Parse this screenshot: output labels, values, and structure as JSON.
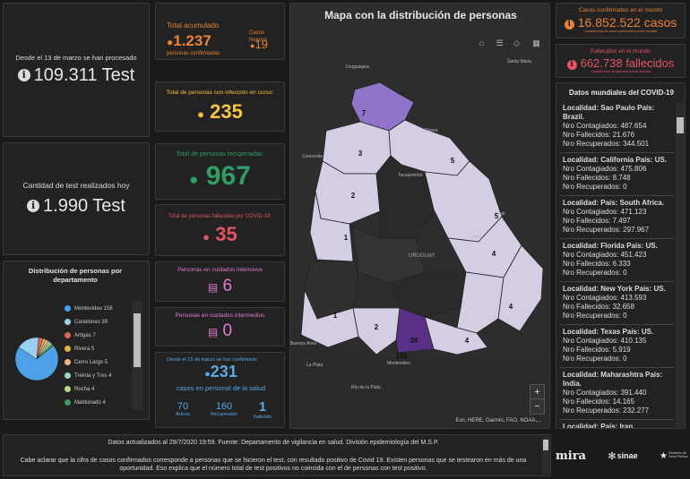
{
  "left": {
    "processed": {
      "caption": "Desde el 13 de marzo se han procesado",
      "value": "109.311 Test"
    },
    "today": {
      "caption": "Cantidad de test realizados hoy",
      "value": "1.990 Test"
    },
    "distribution": {
      "title": "Distribución de personas por departamento",
      "items": [
        {
          "label": "Montevideo 158",
          "color": "#4ea1e8"
        },
        {
          "label": "Canelones 39",
          "color": "#9ad0ef"
        },
        {
          "label": "Artigas 7",
          "color": "#e0645c"
        },
        {
          "label": "Rivera 5",
          "color": "#e0b43c"
        },
        {
          "label": "Cerro Largo 5",
          "color": "#f0b58a"
        },
        {
          "label": "Treinta y Tres 4",
          "color": "#9fd6c0"
        },
        {
          "label": "Rocha 4",
          "color": "#b9d985"
        },
        {
          "label": "Maldonado 4",
          "color": "#3a9a57"
        }
      ]
    }
  },
  "mid": {
    "acum": {
      "title": "Total acumulado",
      "value": "1.237",
      "sub": "personas confirmadas",
      "new_title": "Casos Nuevos",
      "new_value": "19"
    },
    "active": {
      "title": "Total de personas con infección en curso:",
      "value": "235"
    },
    "recovered": {
      "title": "Total de personas recuperadas:",
      "value": "967"
    },
    "deaths": {
      "title": "Total de personas fallecidas por COVID-19:",
      "value": "35"
    },
    "icu": {
      "title": "Personas en cuidados intensivos",
      "value": "6"
    },
    "intermediate": {
      "title": "Personas en cuidados intermedios",
      "value": "0"
    },
    "health": {
      "caption": "Desde el 13 de marzo se han confirmado",
      "value": "231",
      "sub": "casos en personal de la salud",
      "stats": [
        {
          "value": "70",
          "label": "Activos"
        },
        {
          "value": "160",
          "label": "Recuperados"
        },
        {
          "value": "1",
          "label": "Fallecido"
        }
      ]
    }
  },
  "map": {
    "title": "Mapa con la distribución de personas",
    "attribution": "Esri, HERE, Garmin, FAO, NOAA,...",
    "places": [
      "Uruguaiana",
      "Santa Maria",
      "Concordia",
      "Tacuarembó",
      "Rivera",
      "URUGUAY",
      "Buenos Aires",
      "La Plata",
      "Montevideo",
      "Río de la Plata",
      "Bagé",
      "Melo"
    ],
    "counts": [
      "7",
      "3",
      "5",
      "2",
      "5",
      "1",
      "4",
      "1",
      "2",
      "39",
      "158",
      "4",
      "4"
    ],
    "zoom_in": "+",
    "zoom_out": "−"
  },
  "right": {
    "world_cases": {
      "title": "Casos confirmados en el mundo",
      "value": "16.852.522 casos",
      "sub": "Cantidad total de casos confirmados a nivel mundial"
    },
    "world_deaths": {
      "title": "Fallecidos en el mundo",
      "value": "662.738 fallecidos",
      "sub": "Cantidad total de fallecidos a nivel mundial"
    },
    "world_list": {
      "title": "Datos mundiales del COVID-19",
      "items": [
        {
          "loc": "Localidad: Sao Paulo País: Brazil.",
          "c": "Nro Contagiados: 487.654",
          "f": "Nro Fallecidos: 21.676",
          "r": "Nro Recuperados: 344.501"
        },
        {
          "loc": "Localidad: California País: US.",
          "c": "Nro Contagiados: 475.806",
          "f": "Nro Fallecidos: 8.748",
          "r": "Nro Recuperados: 0"
        },
        {
          "loc": "Localidad:  País: South Africa.",
          "c": "Nro Contagiados: 471.123",
          "f": "Nro Fallecidos: 7.497",
          "r": "Nro Recuperados: 297.967"
        },
        {
          "loc": "Localidad: Florida País: US.",
          "c": "Nro Contagiados: 451.423",
          "f": "Nro Fallecidos: 6.333",
          "r": "Nro Recuperados: 0"
        },
        {
          "loc": "Localidad: New York País: US.",
          "c": "Nro Contagiados: 413.593",
          "f": "Nro Fallecidos: 32.658",
          "r": "Nro Recuperados: 0"
        },
        {
          "loc": "Localidad: Texas País: US.",
          "c": "Nro Contagiados: 410.135",
          "f": "Nro Fallecidos: 5.919",
          "r": "Nro Recuperados: 0"
        },
        {
          "loc": "Localidad: Maharashtra País: India.",
          "c": "Nro Contagiados: 391.440",
          "f": "Nro Fallecidos: 14.165",
          "r": "Nro Recuperados: 232.277"
        },
        {
          "loc": "Localidad:  País: Iran.",
          "c": "",
          "f": "",
          "r": ""
        }
      ]
    }
  },
  "footer": {
    "line1": "Datos actualizados al 29/7/2020 19:59. Fuente: Departamento de vigilancia en salud. División epidemiología del M.S.P.",
    "line2": "Cabe aclarar que la cifra de casos confirmados corresponde a personas que se hicieron el test, con resultado positivo de Covid 19. Existen personas que se testearon en más de una oportunidad. Eso explica que el número total de test positivos no coincida con el de personas con test positivo.",
    "logos": [
      "mira",
      "sinae",
      "Ministerio de Salud Pública"
    ]
  }
}
